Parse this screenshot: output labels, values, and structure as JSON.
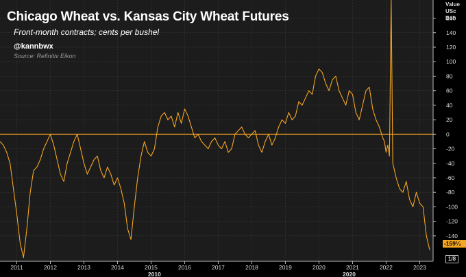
{
  "chart_data": {
    "type": "line",
    "title": "Chicago Wheat vs. Kansas City Wheat Futures",
    "subtitle": "Front-month contracts; cents per bushel",
    "handle": "@kannbwx",
    "source": "Source: Refinitiv Eikon",
    "axis_header": [
      "Value",
      "USc",
      "Bsh"
    ],
    "ylim": [
      -175,
      185
    ],
    "yticks": [
      160,
      140,
      120,
      100,
      80,
      60,
      40,
      20,
      0,
      -20,
      -40,
      -60,
      -80,
      -100,
      -120,
      -140
    ],
    "ytick_labels": [
      "160",
      "140",
      "120",
      "100",
      "80",
      "60",
      "40",
      "20",
      "0",
      "-20",
      "-40",
      "-60",
      "-80",
      "-100",
      "-120",
      "-140"
    ],
    "xlim": [
      2010.5,
      2023.4
    ],
    "xticks": [
      2011,
      2012,
      2013,
      2014,
      2015,
      2016,
      2017,
      2018,
      2019,
      2020,
      2021,
      2022,
      2023
    ],
    "xtick_labels": [
      "2011",
      "2012",
      "2013",
      "2014",
      "2015",
      "2016",
      "2017",
      "2018",
      "2019",
      "2020",
      "2021",
      "2022",
      "2023"
    ],
    "x_major_labels": [
      {
        "x": 2015.1,
        "label": "2010"
      },
      {
        "x": 2020.9,
        "label": "2020"
      }
    ],
    "last_value_label": "-159¹⁄₂",
    "fraction_label": "1/8",
    "reference_line": 0,
    "grid": true,
    "colors": {
      "series": "#f5a623",
      "zero_line": "#f5a623",
      "background": "#000000",
      "plot_bg": "#1c1c1c",
      "grid": "#3a3a3a",
      "text": "#dddddd"
    },
    "series": [
      {
        "x": [
          2010.5,
          2010.6,
          2010.7,
          2010.8,
          2010.9,
          2011.0,
          2011.1,
          2011.2,
          2011.3,
          2011.4,
          2011.5,
          2011.6,
          2011.7,
          2011.8,
          2011.9,
          2012.0,
          2012.1,
          2012.2,
          2012.3,
          2012.4,
          2012.5,
          2012.6,
          2012.7,
          2012.8,
          2012.9,
          2013.0,
          2013.1,
          2013.2,
          2013.3,
          2013.4,
          2013.5,
          2013.6,
          2013.7,
          2013.8,
          2013.9,
          2014.0,
          2014.1,
          2014.2,
          2014.3,
          2014.4,
          2014.5,
          2014.6,
          2014.7,
          2014.8,
          2014.9,
          2015.0,
          2015.1,
          2015.2,
          2015.3,
          2015.4,
          2015.5,
          2015.6,
          2015.7,
          2015.8,
          2015.9,
          2016.0,
          2016.1,
          2016.2,
          2016.3,
          2016.4,
          2016.5,
          2016.6,
          2016.7,
          2016.8,
          2016.9,
          2017.0,
          2017.1,
          2017.2,
          2017.3,
          2017.4,
          2017.5,
          2017.6,
          2017.7,
          2017.8,
          2017.9,
          2018.0,
          2018.1,
          2018.2,
          2018.3,
          2018.4,
          2018.5,
          2018.6,
          2018.7,
          2018.8,
          2018.9,
          2019.0,
          2019.1,
          2019.2,
          2019.3,
          2019.4,
          2019.5,
          2019.6,
          2019.7,
          2019.8,
          2019.9,
          2020.0,
          2020.1,
          2020.2,
          2020.3,
          2020.4,
          2020.5,
          2020.6,
          2020.7,
          2020.8,
          2020.9,
          2021.0,
          2021.1,
          2021.2,
          2021.3,
          2021.4,
          2021.5,
          2021.6,
          2021.7,
          2021.8,
          2021.9,
          2021.95,
          2022.0,
          2022.05,
          2022.1,
          2022.15,
          2022.2,
          2022.3,
          2022.4,
          2022.5,
          2022.6,
          2022.7,
          2022.8,
          2022.9,
          2023.0,
          2023.1,
          2023.2,
          2023.3
        ],
        "values": [
          -10,
          -15,
          -25,
          -40,
          -75,
          -110,
          -150,
          -170,
          -130,
          -80,
          -50,
          -45,
          -35,
          -20,
          -10,
          0,
          -15,
          -35,
          -55,
          -65,
          -40,
          -25,
          -10,
          0,
          -20,
          -40,
          -55,
          -45,
          -35,
          -30,
          -50,
          -60,
          -45,
          -55,
          -70,
          -60,
          -75,
          -95,
          -130,
          -145,
          -100,
          -60,
          -30,
          -10,
          -25,
          -30,
          -20,
          10,
          25,
          30,
          20,
          25,
          10,
          30,
          15,
          35,
          25,
          10,
          -5,
          0,
          -10,
          -15,
          -20,
          -10,
          -5,
          -15,
          -20,
          -10,
          -25,
          -20,
          0,
          5,
          10,
          0,
          -5,
          0,
          5,
          -15,
          -25,
          -10,
          0,
          -15,
          -5,
          10,
          20,
          15,
          30,
          20,
          25,
          45,
          40,
          50,
          60,
          55,
          80,
          90,
          85,
          70,
          60,
          75,
          80,
          60,
          50,
          40,
          60,
          55,
          30,
          20,
          40,
          60,
          65,
          35,
          20,
          10,
          -5,
          -10,
          -25,
          -15,
          -30,
          185,
          -40,
          -60,
          -75,
          -80,
          -65,
          -90,
          -100,
          -80,
          -95,
          -100,
          -140,
          -159.5
        ]
      }
    ]
  }
}
